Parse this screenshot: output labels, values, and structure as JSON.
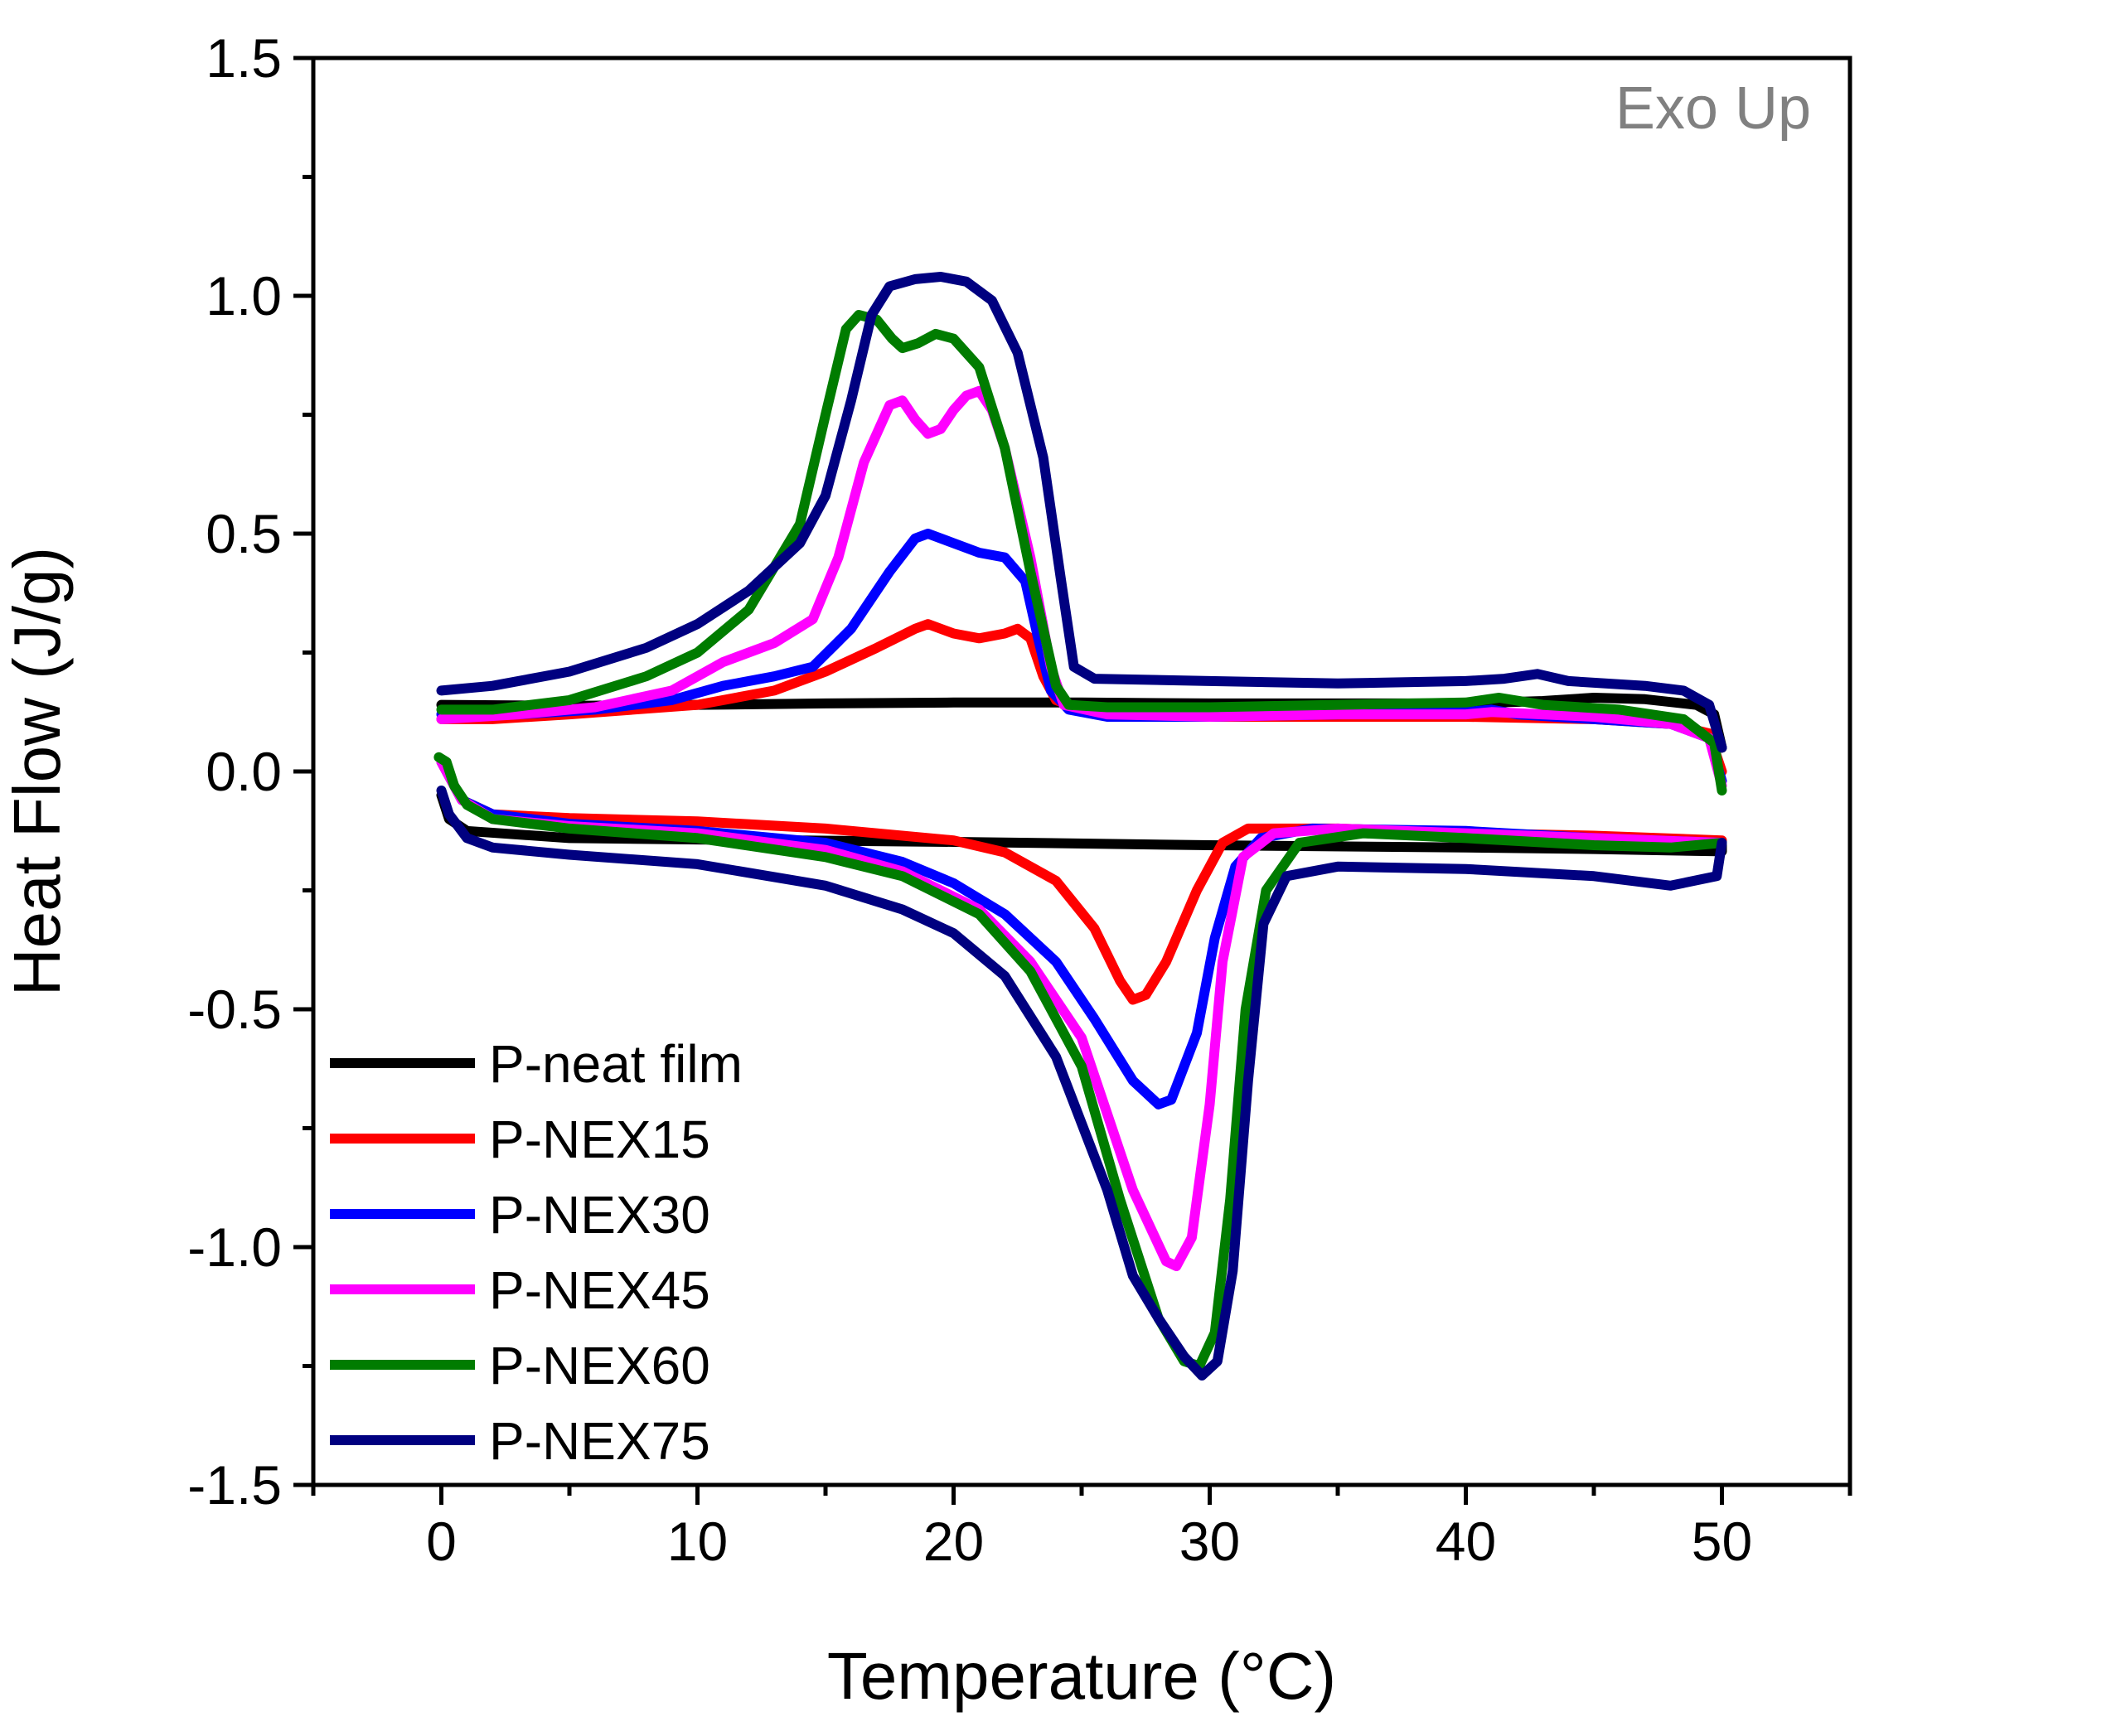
{
  "chart_data": {
    "type": "line",
    "title": "",
    "xlabel": "Temperature (°C)",
    "ylabel": "Heat Flow (J/g)",
    "annotation": "Exo Up",
    "xlim": [
      -5,
      55
    ],
    "ylim": [
      -1.5,
      1.5
    ],
    "x_ticks": [
      0,
      10,
      20,
      30,
      40,
      50
    ],
    "y_ticks": [
      1.5,
      1.0,
      0.5,
      0.0,
      -0.5,
      -1.0,
      -1.5
    ],
    "y_tick_labels": [
      "1.5",
      "1.0",
      "0.5",
      "0.0",
      "-0.5",
      "-1.0",
      "-1.5"
    ],
    "grid": false,
    "legend_position": "bottom-left",
    "series": [
      {
        "name": "P-neat film",
        "color": "#000000",
        "cooling": [
          [
            0,
            0.14
          ],
          [
            5,
            0.138
          ],
          [
            10,
            0.14
          ],
          [
            15,
            0.143
          ],
          [
            20,
            0.145
          ],
          [
            25,
            0.145
          ],
          [
            30,
            0.143
          ],
          [
            35,
            0.143
          ],
          [
            40,
            0.143
          ],
          [
            43,
            0.148
          ],
          [
            45,
            0.155
          ],
          [
            47,
            0.152
          ],
          [
            49,
            0.14
          ],
          [
            49.7,
            0.12
          ],
          [
            50,
            0.05
          ]
        ],
        "heating": [
          [
            0,
            -0.05
          ],
          [
            0.3,
            -0.1
          ],
          [
            1,
            -0.125
          ],
          [
            5,
            -0.14
          ],
          [
            10,
            -0.143
          ],
          [
            20,
            -0.148
          ],
          [
            30,
            -0.155
          ],
          [
            40,
            -0.16
          ],
          [
            45,
            -0.163
          ],
          [
            50,
            -0.168
          ],
          [
            50,
            -0.15
          ]
        ]
      },
      {
        "name": "P-NEX15",
        "color": "#ff0000",
        "cooling": [
          [
            0,
            0.11
          ],
          [
            2,
            0.11
          ],
          [
            5,
            0.12
          ],
          [
            10,
            0.14
          ],
          [
            13,
            0.17
          ],
          [
            15,
            0.21
          ],
          [
            17,
            0.26
          ],
          [
            18.5,
            0.3
          ],
          [
            19,
            0.31
          ],
          [
            20,
            0.29
          ],
          [
            21,
            0.28
          ],
          [
            22,
            0.29
          ],
          [
            22.5,
            0.3
          ],
          [
            23,
            0.28
          ],
          [
            23.5,
            0.2
          ],
          [
            24,
            0.15
          ],
          [
            25,
            0.13
          ],
          [
            26,
            0.12
          ],
          [
            30,
            0.115
          ],
          [
            40,
            0.115
          ],
          [
            45,
            0.11
          ],
          [
            48,
            0.1
          ],
          [
            49.5,
            0.08
          ],
          [
            50,
            0.0
          ]
        ],
        "heating": [
          [
            0,
            0.02
          ],
          [
            0.2,
            0.0
          ],
          [
            0.8,
            -0.06
          ],
          [
            2,
            -0.09
          ],
          [
            5,
            -0.098
          ],
          [
            10,
            -0.105
          ],
          [
            15,
            -0.12
          ],
          [
            20,
            -0.145
          ],
          [
            22,
            -0.17
          ],
          [
            24,
            -0.23
          ],
          [
            25.5,
            -0.33
          ],
          [
            26.5,
            -0.44
          ],
          [
            27,
            -0.48
          ],
          [
            27.5,
            -0.47
          ],
          [
            28.3,
            -0.4
          ],
          [
            29.5,
            -0.25
          ],
          [
            30.5,
            -0.15
          ],
          [
            31.5,
            -0.12
          ],
          [
            35,
            -0.12
          ],
          [
            40,
            -0.13
          ],
          [
            45,
            -0.135
          ],
          [
            50,
            -0.145
          ]
        ]
      },
      {
        "name": "P-NEX30",
        "color": "#0000ff",
        "cooling": [
          [
            0,
            0.12
          ],
          [
            3,
            0.12
          ],
          [
            6,
            0.13
          ],
          [
            9,
            0.15
          ],
          [
            11,
            0.18
          ],
          [
            13,
            0.2
          ],
          [
            14.5,
            0.22
          ],
          [
            16,
            0.3
          ],
          [
            17.5,
            0.42
          ],
          [
            18.5,
            0.49
          ],
          [
            19,
            0.5
          ],
          [
            20,
            0.48
          ],
          [
            21,
            0.46
          ],
          [
            22,
            0.45
          ],
          [
            22.8,
            0.4
          ],
          [
            23.3,
            0.28
          ],
          [
            23.8,
            0.17
          ],
          [
            24.5,
            0.13
          ],
          [
            26,
            0.115
          ],
          [
            30,
            0.115
          ],
          [
            35,
            0.12
          ],
          [
            40,
            0.125
          ],
          [
            41,
            0.13
          ],
          [
            42,
            0.12
          ],
          [
            45,
            0.11
          ],
          [
            48,
            0.1
          ],
          [
            49.5,
            0.07
          ],
          [
            50,
            -0.02
          ]
        ],
        "heating": [
          [
            0,
            0.02
          ],
          [
            0.2,
            0.0
          ],
          [
            0.8,
            -0.06
          ],
          [
            2,
            -0.09
          ],
          [
            5,
            -0.11
          ],
          [
            10,
            -0.125
          ],
          [
            15,
            -0.15
          ],
          [
            18,
            -0.19
          ],
          [
            20,
            -0.235
          ],
          [
            22,
            -0.3
          ],
          [
            24,
            -0.4
          ],
          [
            25.5,
            -0.52
          ],
          [
            27,
            -0.65
          ],
          [
            28,
            -0.7
          ],
          [
            28.5,
            -0.69
          ],
          [
            29.5,
            -0.55
          ],
          [
            30.2,
            -0.35
          ],
          [
            31,
            -0.2
          ],
          [
            32,
            -0.14
          ],
          [
            34,
            -0.12
          ],
          [
            40,
            -0.125
          ],
          [
            45,
            -0.14
          ],
          [
            50,
            -0.15
          ]
        ]
      },
      {
        "name": "P-NEX45",
        "color": "#ff00ff",
        "cooling": [
          [
            0,
            0.11
          ],
          [
            3,
            0.12
          ],
          [
            6,
            0.135
          ],
          [
            9,
            0.17
          ],
          [
            11,
            0.23
          ],
          [
            13,
            0.27
          ],
          [
            14.5,
            0.32
          ],
          [
            15.5,
            0.45
          ],
          [
            16.5,
            0.65
          ],
          [
            17.5,
            0.77
          ],
          [
            18,
            0.78
          ],
          [
            18.5,
            0.74
          ],
          [
            19,
            0.71
          ],
          [
            19.5,
            0.72
          ],
          [
            20,
            0.76
          ],
          [
            20.5,
            0.79
          ],
          [
            21,
            0.8
          ],
          [
            21.5,
            0.76
          ],
          [
            22,
            0.68
          ],
          [
            23,
            0.45
          ],
          [
            23.8,
            0.22
          ],
          [
            24.3,
            0.14
          ],
          [
            26,
            0.12
          ],
          [
            30,
            0.115
          ],
          [
            35,
            0.12
          ],
          [
            40,
            0.12
          ],
          [
            41,
            0.125
          ],
          [
            45,
            0.115
          ],
          [
            48,
            0.1
          ],
          [
            49.5,
            0.07
          ],
          [
            50,
            -0.03
          ]
        ],
        "heating": [
          [
            0,
            0.02
          ],
          [
            0.2,
            0.0
          ],
          [
            0.8,
            -0.06
          ],
          [
            2,
            -0.1
          ],
          [
            5,
            -0.115
          ],
          [
            10,
            -0.13
          ],
          [
            15,
            -0.165
          ],
          [
            18,
            -0.21
          ],
          [
            21,
            -0.29
          ],
          [
            23,
            -0.4
          ],
          [
            25,
            -0.56
          ],
          [
            27,
            -0.88
          ],
          [
            28.3,
            -1.03
          ],
          [
            28.7,
            -1.04
          ],
          [
            29.3,
            -0.98
          ],
          [
            30,
            -0.7
          ],
          [
            30.5,
            -0.4
          ],
          [
            31.3,
            -0.18
          ],
          [
            32.5,
            -0.13
          ],
          [
            35,
            -0.12
          ],
          [
            40,
            -0.13
          ],
          [
            45,
            -0.14
          ],
          [
            50,
            -0.15
          ]
        ]
      },
      {
        "name": "P-NEX60",
        "color": "#007c00",
        "cooling": [
          [
            0,
            0.13
          ],
          [
            2,
            0.13
          ],
          [
            5,
            0.15
          ],
          [
            8,
            0.2
          ],
          [
            10,
            0.25
          ],
          [
            12,
            0.34
          ],
          [
            14,
            0.52
          ],
          [
            15,
            0.75
          ],
          [
            15.8,
            0.93
          ],
          [
            16.3,
            0.96
          ],
          [
            17,
            0.95
          ],
          [
            17.6,
            0.91
          ],
          [
            18,
            0.89
          ],
          [
            18.6,
            0.9
          ],
          [
            19.3,
            0.92
          ],
          [
            20,
            0.91
          ],
          [
            21,
            0.85
          ],
          [
            22,
            0.68
          ],
          [
            23,
            0.42
          ],
          [
            24,
            0.18
          ],
          [
            24.5,
            0.14
          ],
          [
            26,
            0.135
          ],
          [
            30,
            0.135
          ],
          [
            35,
            0.14
          ],
          [
            40,
            0.145
          ],
          [
            41.3,
            0.155
          ],
          [
            43,
            0.14
          ],
          [
            46,
            0.13
          ],
          [
            48.5,
            0.11
          ],
          [
            49.7,
            0.06
          ],
          [
            50,
            -0.04
          ]
        ],
        "heating": [
          [
            -0.1,
            0.03
          ],
          [
            0.2,
            0.02
          ],
          [
            0.5,
            -0.03
          ],
          [
            1,
            -0.07
          ],
          [
            2,
            -0.1
          ],
          [
            5,
            -0.12
          ],
          [
            10,
            -0.14
          ],
          [
            15,
            -0.18
          ],
          [
            18,
            -0.22
          ],
          [
            21,
            -0.3
          ],
          [
            23,
            -0.42
          ],
          [
            25,
            -0.62
          ],
          [
            26.5,
            -0.9
          ],
          [
            28,
            -1.15
          ],
          [
            29,
            -1.24
          ],
          [
            29.6,
            -1.25
          ],
          [
            30.2,
            -1.18
          ],
          [
            30.8,
            -0.9
          ],
          [
            31.4,
            -0.5
          ],
          [
            32.2,
            -0.25
          ],
          [
            33.5,
            -0.15
          ],
          [
            36,
            -0.13
          ],
          [
            40,
            -0.14
          ],
          [
            45,
            -0.155
          ],
          [
            48,
            -0.16
          ],
          [
            50,
            -0.15
          ]
        ]
      },
      {
        "name": "P-NEX75",
        "color": "#000080",
        "cooling": [
          [
            0,
            0.17
          ],
          [
            2,
            0.18
          ],
          [
            5,
            0.21
          ],
          [
            8,
            0.26
          ],
          [
            10,
            0.31
          ],
          [
            12,
            0.38
          ],
          [
            14,
            0.48
          ],
          [
            15,
            0.58
          ],
          [
            16,
            0.78
          ],
          [
            16.8,
            0.96
          ],
          [
            17.5,
            1.02
          ],
          [
            18.5,
            1.035
          ],
          [
            19.5,
            1.04
          ],
          [
            20.5,
            1.03
          ],
          [
            21.5,
            0.99
          ],
          [
            22.5,
            0.88
          ],
          [
            23.5,
            0.66
          ],
          [
            24.2,
            0.4
          ],
          [
            24.7,
            0.22
          ],
          [
            25.5,
            0.195
          ],
          [
            30,
            0.19
          ],
          [
            35,
            0.185
          ],
          [
            40,
            0.19
          ],
          [
            41.5,
            0.195
          ],
          [
            42.8,
            0.205
          ],
          [
            44,
            0.19
          ],
          [
            47,
            0.18
          ],
          [
            48.5,
            0.17
          ],
          [
            49.5,
            0.14
          ],
          [
            50,
            0.05
          ]
        ],
        "heating": [
          [
            0,
            -0.04
          ],
          [
            0.3,
            -0.09
          ],
          [
            1,
            -0.14
          ],
          [
            2,
            -0.16
          ],
          [
            5,
            -0.175
          ],
          [
            10,
            -0.195
          ],
          [
            15,
            -0.24
          ],
          [
            18,
            -0.29
          ],
          [
            20,
            -0.34
          ],
          [
            22,
            -0.43
          ],
          [
            24,
            -0.6
          ],
          [
            26,
            -0.88
          ],
          [
            27,
            -1.06
          ],
          [
            28,
            -1.15
          ],
          [
            29,
            -1.23
          ],
          [
            29.7,
            -1.27
          ],
          [
            30.3,
            -1.24
          ],
          [
            30.9,
            -1.05
          ],
          [
            31.5,
            -0.65
          ],
          [
            32.1,
            -0.32
          ],
          [
            33,
            -0.22
          ],
          [
            35,
            -0.2
          ],
          [
            40,
            -0.205
          ],
          [
            45,
            -0.22
          ],
          [
            48,
            -0.24
          ],
          [
            49.8,
            -0.22
          ],
          [
            50,
            -0.15
          ]
        ]
      }
    ]
  }
}
